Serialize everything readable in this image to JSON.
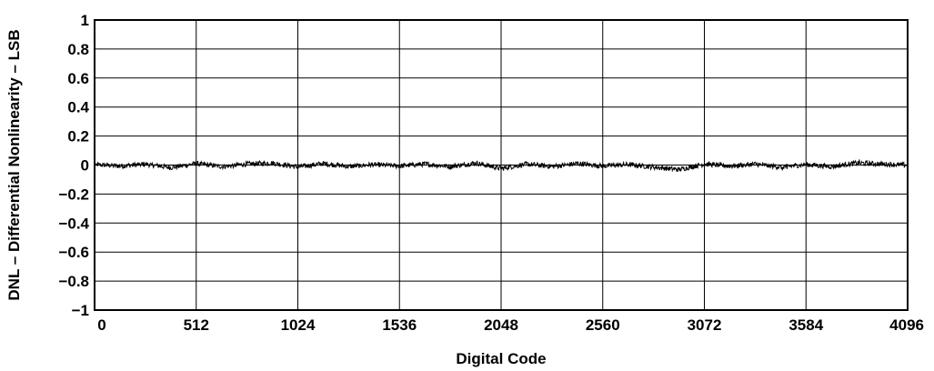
{
  "chart_data": {
    "type": "line",
    "title": "",
    "xlabel": "Digital Code",
    "ylabel": "DNL – Differential Nonlinearity – LSB",
    "xlim": [
      0,
      4096
    ],
    "ylim": [
      -1,
      1
    ],
    "x_ticks": [
      "0",
      "512",
      "1024",
      "1536",
      "2048",
      "2560",
      "3072",
      "3584",
      "4096"
    ],
    "y_ticks": [
      "1",
      "0.8",
      "0.6",
      "0.4",
      "0.2",
      "0",
      "−0.2",
      "−0.4",
      "−0.6",
      "−0.8",
      "−1"
    ],
    "grid": true,
    "series": [
      {
        "name": "",
        "color": "#000000",
        "x": [
          0,
          128,
          256,
          384,
          512,
          640,
          768,
          896,
          1024,
          1152,
          1280,
          1408,
          1536,
          1664,
          1792,
          1920,
          2048,
          2176,
          2304,
          2432,
          2560,
          2688,
          2816,
          2944,
          3072,
          3200,
          3328,
          3456,
          3584,
          3712,
          3840,
          3968,
          4096
        ],
        "values": [
          0.01,
          -0.02,
          0.02,
          -0.05,
          0.03,
          -0.03,
          0.02,
          0.04,
          -0.04,
          0.03,
          -0.03,
          0.01,
          -0.02,
          0.02,
          -0.03,
          0.04,
          -0.07,
          0.02,
          -0.03,
          0.03,
          -0.02,
          0.01,
          -0.04,
          -0.09,
          0.02,
          -0.02,
          0.02,
          -0.04,
          0.01,
          -0.03,
          0.04,
          0.02,
          0.0
        ]
      }
    ]
  }
}
